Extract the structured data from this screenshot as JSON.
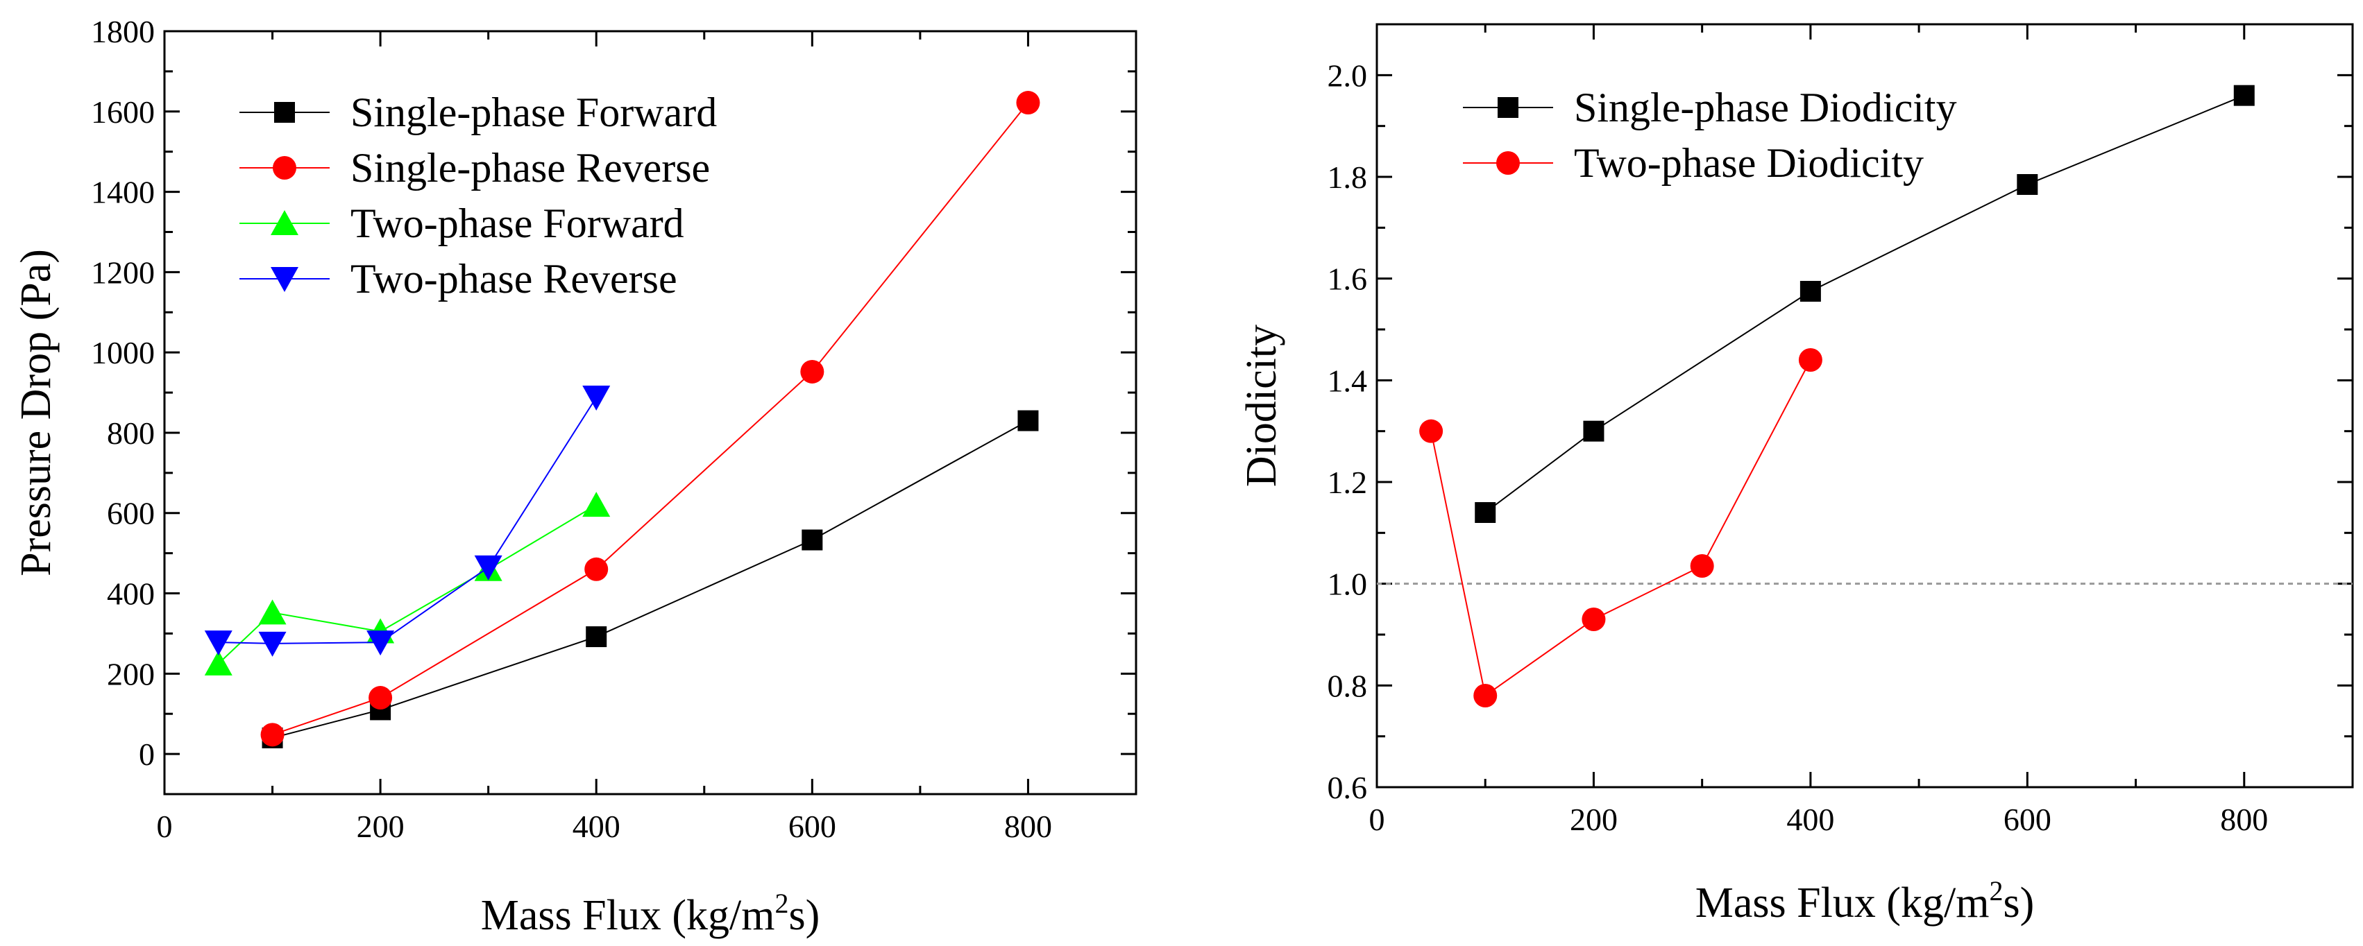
{
  "chart_data": [
    {
      "type": "line",
      "xlabel": "Mass Flux (kg/m",
      "xlabel_sup": "2",
      "xlabel_tail": "s)",
      "ylabel": "Pressure Drop (Pa)",
      "xlim": [
        0,
        900
      ],
      "ylim": [
        -100,
        1800
      ],
      "xticks": [
        0,
        200,
        400,
        600,
        800
      ],
      "yticks": [
        0,
        200,
        400,
        600,
        800,
        1000,
        1200,
        1400,
        1600,
        1800
      ],
      "legend_position": "top-left",
      "series": [
        {
          "name": "Single-phase Forward",
          "color": "#000000",
          "marker": "square",
          "x": [
            100,
            200,
            400,
            600,
            800
          ],
          "y": [
            40,
            110,
            292,
            533,
            830
          ]
        },
        {
          "name": "Single-phase Reverse",
          "color": "#ff0000",
          "marker": "circle",
          "x": [
            100,
            200,
            400,
            600,
            800
          ],
          "y": [
            48,
            140,
            460,
            952,
            1622
          ]
        },
        {
          "name": "Two-phase Forward",
          "color": "#00ff00",
          "marker": "triangle-up",
          "x": [
            50,
            100,
            200,
            300,
            400
          ],
          "y": [
            225,
            352,
            305,
            460,
            620
          ]
        },
        {
          "name": "Two-phase Reverse",
          "color": "#0000ff",
          "marker": "triangle-down",
          "x": [
            50,
            100,
            200,
            300,
            400
          ],
          "y": [
            278,
            275,
            278,
            465,
            888
          ]
        }
      ]
    },
    {
      "type": "line",
      "xlabel": "Mass Flux (kg/m",
      "xlabel_sup": "2",
      "xlabel_tail": "s)",
      "ylabel": "Diodicity",
      "xlim": [
        0,
        900
      ],
      "ylim": [
        0.6,
        2.1
      ],
      "xticks": [
        0,
        200,
        400,
        600,
        800
      ],
      "yticks": [
        0.6,
        0.8,
        1.0,
        1.2,
        1.4,
        1.6,
        1.8,
        2.0
      ],
      "reference_line": 1.0,
      "legend_position": "top-left",
      "series": [
        {
          "name": "Single-phase Diodicity",
          "color": "#000000",
          "marker": "square",
          "x": [
            100,
            200,
            400,
            600,
            800
          ],
          "y": [
            1.14,
            1.3,
            1.575,
            1.785,
            1.96
          ]
        },
        {
          "name": "Two-phase Diodicity",
          "color": "#ff0000",
          "marker": "circle",
          "x": [
            50,
            100,
            200,
            300,
            400
          ],
          "y": [
            1.3,
            0.78,
            0.93,
            1.035,
            1.44
          ]
        }
      ]
    }
  ]
}
